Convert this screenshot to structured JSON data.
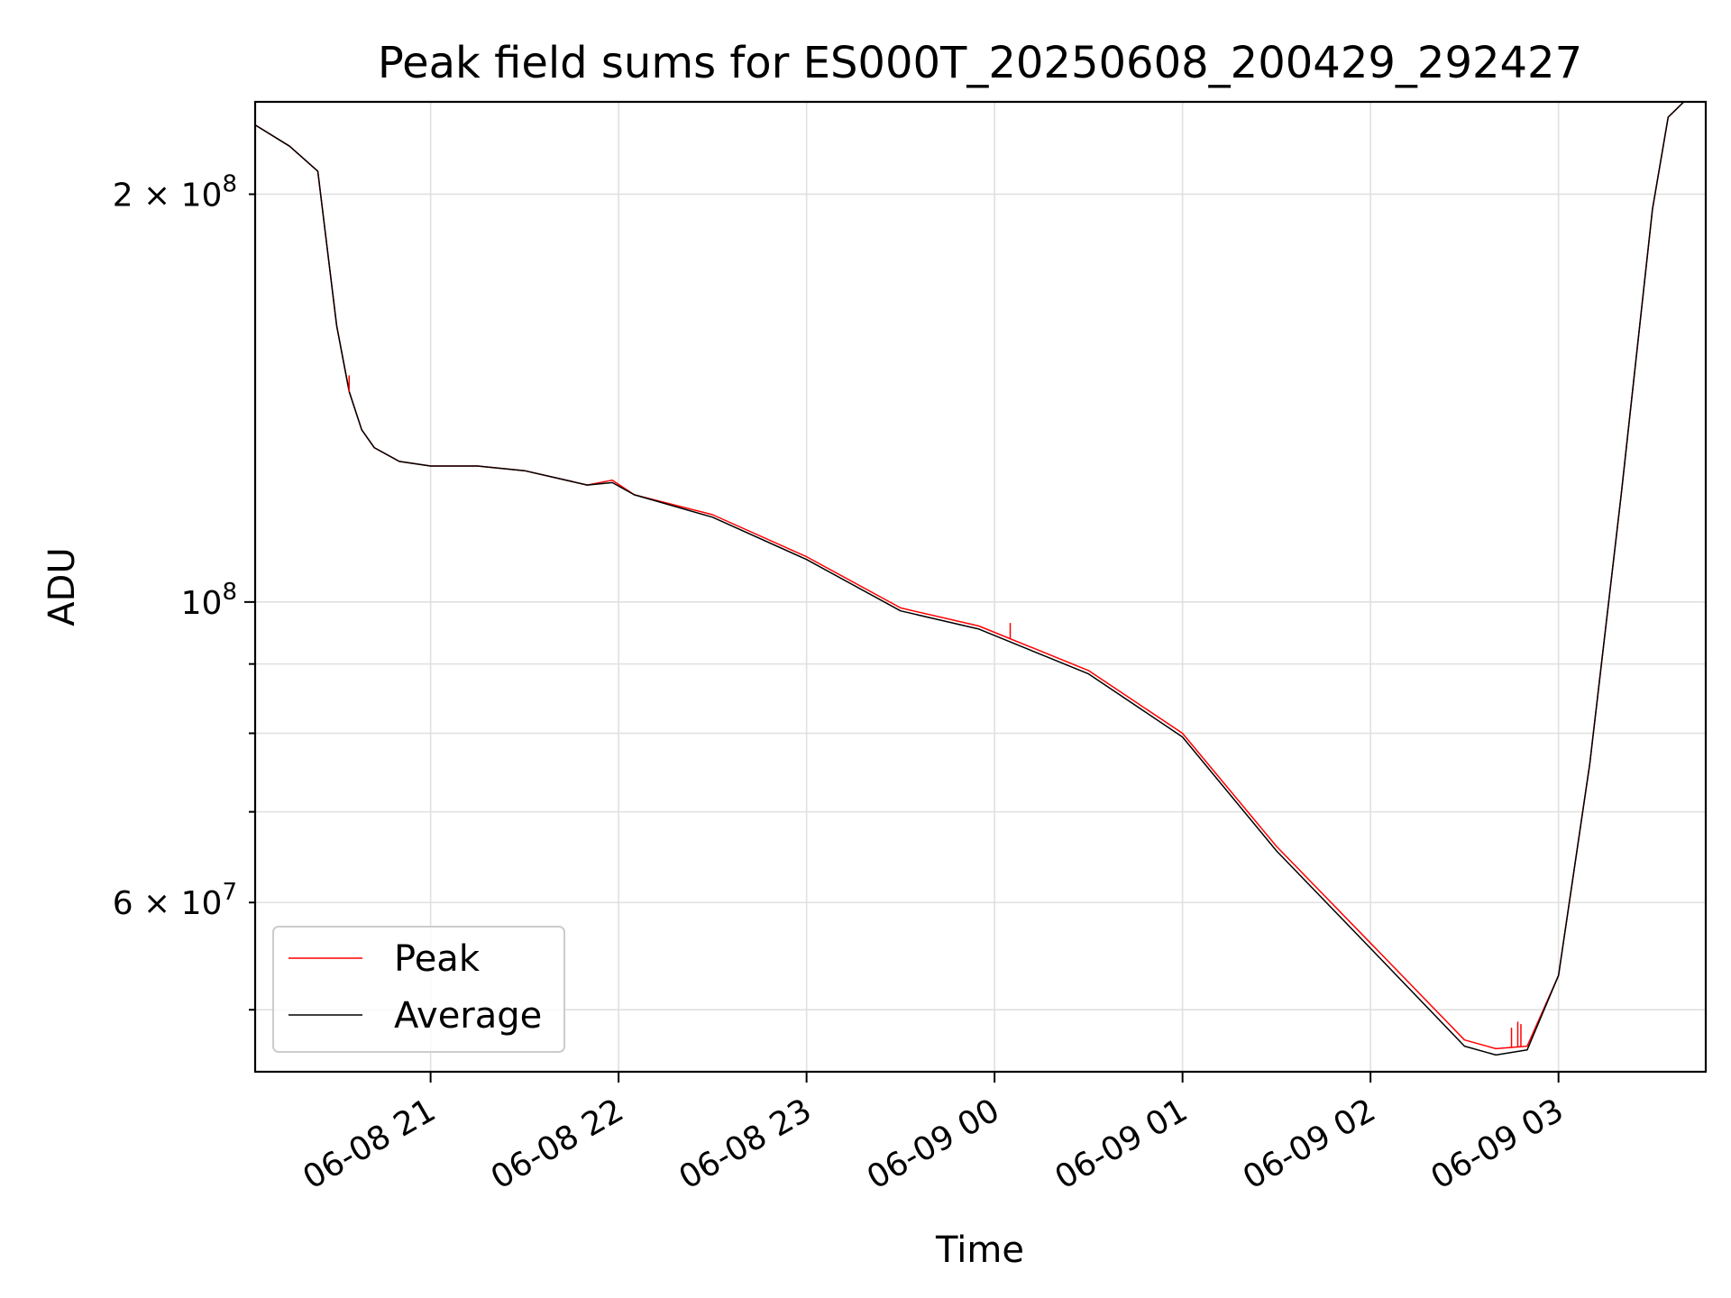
{
  "chart_data": {
    "type": "line",
    "title": "Peak field sums for ES000T_20250608_200429_292427",
    "xlabel": "Time",
    "ylabel": "ADU",
    "yscale": "log",
    "grid": true,
    "legend_position": "lower left",
    "x_range": [
      "2025-06-08 20:04",
      "2025-06-09 03:47"
    ],
    "ylim": [
      45000000,
      234000000
    ],
    "x_ticks": [
      "06-08 21",
      "06-08 22",
      "06-08 23",
      "06-09 00",
      "06-09 01",
      "06-09 02",
      "06-09 03"
    ],
    "y_tick_labels": [
      {
        "value": 200000000,
        "base": "2 × 10",
        "exp": "8"
      },
      {
        "value": 100000000,
        "base": "10",
        "exp": "8"
      },
      {
        "value": 60000000,
        "base": "6 × 10",
        "exp": "7"
      }
    ],
    "series": [
      {
        "name": "Peak",
        "color": "#ff0000",
        "x": [
          "2025-06-08 20:04",
          "2025-06-08 20:15",
          "2025-06-08 20:24",
          "2025-06-08 20:30",
          "2025-06-08 20:34",
          "2025-06-08 20:38",
          "2025-06-08 20:42",
          "2025-06-08 20:50",
          "2025-06-08 21:00",
          "2025-06-08 21:15",
          "2025-06-08 21:30",
          "2025-06-08 21:50",
          "2025-06-08 21:58",
          "2025-06-08 22:05",
          "2025-06-08 22:30",
          "2025-06-08 23:00",
          "2025-06-08 23:30",
          "2025-06-08 23:55",
          "2025-06-09 00:30",
          "2025-06-09 01:00",
          "2025-06-09 01:30",
          "2025-06-09 02:00",
          "2025-06-09 02:30",
          "2025-06-09 02:40",
          "2025-06-09 02:50",
          "2025-06-09 03:00",
          "2025-06-09 03:10",
          "2025-06-09 03:20",
          "2025-06-09 03:30",
          "2025-06-09 03:35",
          "2025-06-09 03:40",
          "2025-06-09 03:47"
        ],
        "values": [
          225000000,
          217000000,
          208000000,
          160000000,
          143000000,
          134000000,
          130000000,
          127000000,
          126000000,
          126000000,
          125000000,
          122000000,
          123000000,
          120000000,
          116000000,
          108000000,
          99000000,
          96000000,
          89000000,
          80000000,
          66000000,
          56000000,
          47500000,
          46800000,
          47000000,
          53000000,
          76000000,
          120000000,
          195000000,
          228000000,
          234000000,
          234000000
        ]
      },
      {
        "name": "Average",
        "color": "#000000",
        "x": [
          "2025-06-08 20:04",
          "2025-06-08 20:15",
          "2025-06-08 20:24",
          "2025-06-08 20:30",
          "2025-06-08 20:34",
          "2025-06-08 20:38",
          "2025-06-08 20:42",
          "2025-06-08 20:50",
          "2025-06-08 21:00",
          "2025-06-08 21:15",
          "2025-06-08 21:30",
          "2025-06-08 21:50",
          "2025-06-08 21:58",
          "2025-06-08 22:05",
          "2025-06-08 22:30",
          "2025-06-08 23:00",
          "2025-06-08 23:30",
          "2025-06-08 23:55",
          "2025-06-09 00:30",
          "2025-06-09 01:00",
          "2025-06-09 01:30",
          "2025-06-09 02:00",
          "2025-06-09 02:30",
          "2025-06-09 02:40",
          "2025-06-09 02:50",
          "2025-06-09 03:00",
          "2025-06-09 03:10",
          "2025-06-09 03:20",
          "2025-06-09 03:30",
          "2025-06-09 03:35",
          "2025-06-09 03:40",
          "2025-06-09 03:47"
        ],
        "values": [
          225000000,
          217000000,
          208000000,
          160000000,
          143000000,
          134000000,
          130000000,
          127000000,
          126000000,
          126000000,
          125000000,
          122000000,
          122500000,
          120000000,
          115500000,
          107500000,
          98500000,
          95500000,
          88500000,
          79500000,
          65500000,
          55500000,
          47000000,
          46300000,
          46700000,
          53000000,
          76000000,
          120000000,
          195000000,
          228000000,
          234000000,
          234000000
        ]
      }
    ],
    "spikes": [
      {
        "series": "Peak",
        "x": "2025-06-08 20:34",
        "value": 147000000
      },
      {
        "series": "Peak",
        "x": "2025-06-09 00:05",
        "value": 96500000
      },
      {
        "series": "Peak",
        "x": "2025-06-09 02:45",
        "value": 48500000
      },
      {
        "series": "Peak",
        "x": "2025-06-09 02:47",
        "value": 49000000
      },
      {
        "series": "Peak",
        "x": "2025-06-09 02:48",
        "value": 48800000
      }
    ]
  }
}
